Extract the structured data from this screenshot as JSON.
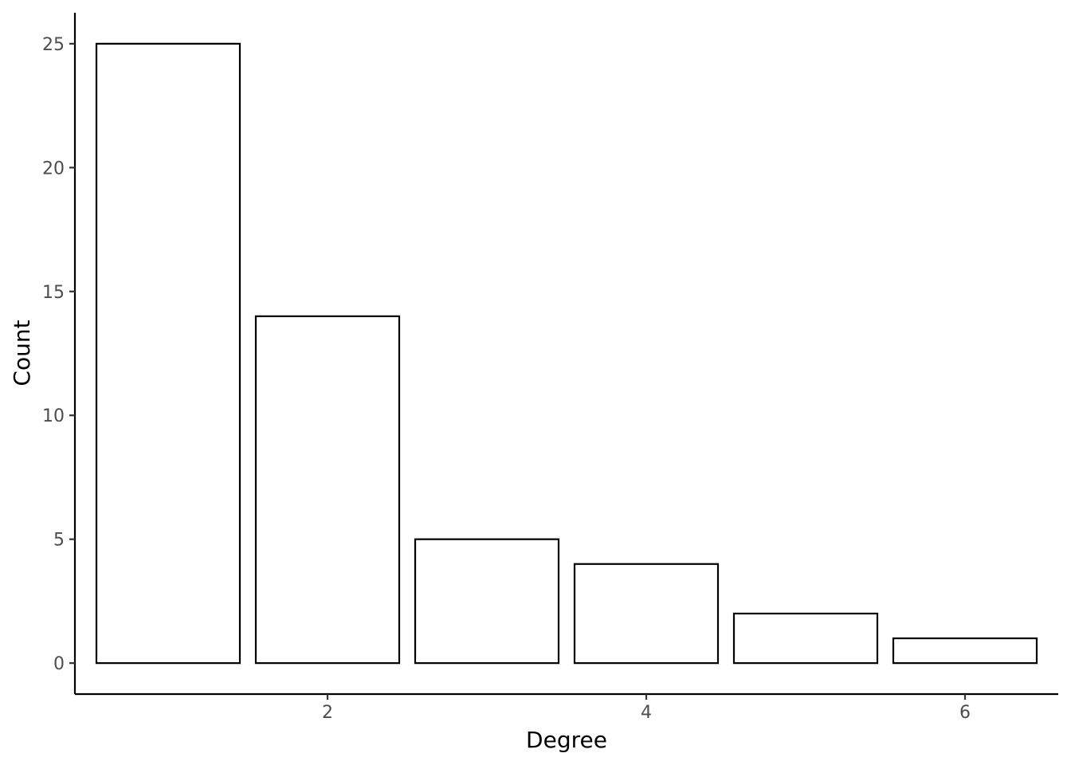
{
  "chart_data": {
    "type": "bar",
    "x": [
      1,
      2,
      3,
      4,
      5,
      6
    ],
    "values": [
      25,
      14,
      5,
      4,
      2,
      1
    ],
    "xlabel": "Degree",
    "ylabel": "Count",
    "xlim": [
      0.415,
      6.585
    ],
    "ylim": [
      -1.25,
      26.25
    ],
    "x_ticks": [
      2,
      4,
      6
    ],
    "x_tick_labels": [
      "2",
      "4",
      "6"
    ],
    "y_ticks": [
      0,
      5,
      10,
      15,
      20,
      25
    ],
    "y_tick_labels": [
      "0",
      "5",
      "10",
      "15",
      "20",
      "25"
    ],
    "bar_width": 0.9,
    "bar_fill": "#ffffff",
    "bar_outline": "#000000",
    "grid": false,
    "legend": "none"
  }
}
